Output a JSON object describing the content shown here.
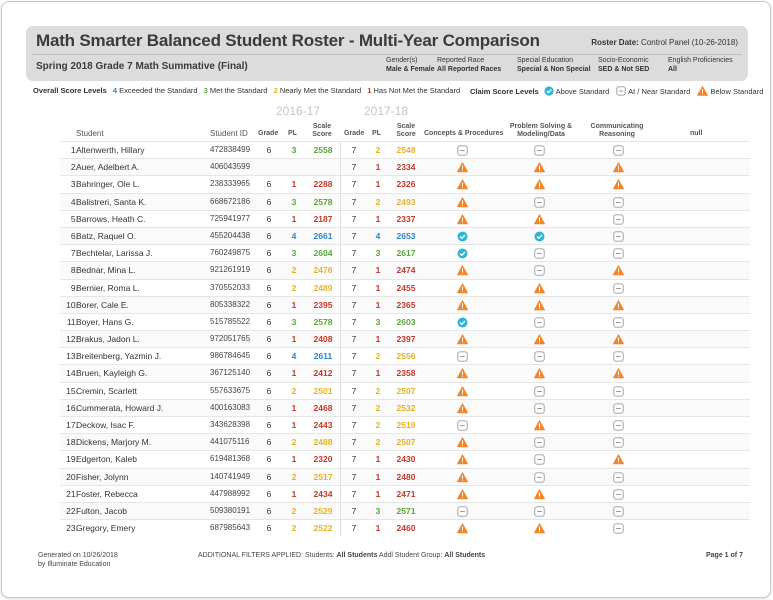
{
  "header": {
    "title": "Math Smarter Balanced Student Roster - Multi-Year Comparison",
    "roster_date_label": "Roster Date:",
    "roster_date_value": "Control Panel (10-26-2018)",
    "subtitle": "Spring 2018 Grade 7 Math Summative (Final)",
    "filters": [
      {
        "label": "Gender(s)",
        "value": "Male & Female"
      },
      {
        "label": "Reported Race",
        "value": "All Reported Races"
      },
      {
        "label": "Special Education",
        "value": "Special & Non Special"
      },
      {
        "label": "Socio-Economic",
        "value": "SED & Not SED"
      },
      {
        "label": "English Proficiencies",
        "value": "All"
      }
    ]
  },
  "legend": {
    "overall_label": "Overall Score Levels",
    "levels": [
      {
        "num": "4",
        "text": "Exceeded the Standard"
      },
      {
        "num": "3",
        "text": "Met the Standard"
      },
      {
        "num": "2",
        "text": "Nearly Met the Standard"
      },
      {
        "num": "1",
        "text": "Has Not Met the Standard"
      }
    ],
    "claim_label": "Claim Score Levels",
    "claim_levels": [
      "Above Standard",
      "At / Near Standard",
      "Below Standard"
    ]
  },
  "years": [
    "2016-17",
    "2017-18"
  ],
  "columns": {
    "student": "Student",
    "student_id": "Student ID",
    "grade": "Grade",
    "pl": "PL",
    "scale_score": "Scale Score",
    "concepts": "Concepts & Procedures",
    "problem": "Problem Solving & Modeling/Data",
    "communicating": "Communicating Reasoning",
    "null_col": "null"
  },
  "colors": {
    "level4": "#2f83c5",
    "level3": "#5aa637",
    "level2": "#e6b325",
    "level1": "#c0392b",
    "above": "#2eb5d4",
    "near": "#9a9a9a",
    "below": "#f0862a"
  },
  "students": [
    {
      "n": "1.",
      "name": "Altenwerth, Hillary",
      "id": "472838499",
      "g1": "6",
      "p1": "3",
      "s1": "2558",
      "g2": "7",
      "p2": "2",
      "s2": "2548",
      "c": [
        "near",
        "near",
        "near"
      ]
    },
    {
      "n": "2.",
      "name": "Auer, Adelbert A.",
      "id": "406043599",
      "g1": "",
      "p1": "",
      "s1": "",
      "g2": "7",
      "p2": "1",
      "s2": "2334",
      "c": [
        "below",
        "below",
        "below"
      ]
    },
    {
      "n": "3.",
      "name": "Bahringer, Ole L.",
      "id": "238333965",
      "g1": "6",
      "p1": "1",
      "s1": "2288",
      "g2": "7",
      "p2": "1",
      "s2": "2326",
      "c": [
        "below",
        "below",
        "below"
      ]
    },
    {
      "n": "4.",
      "name": "Balistreri, Santa K.",
      "id": "668672186",
      "g1": "6",
      "p1": "3",
      "s1": "2578",
      "g2": "7",
      "p2": "2",
      "s2": "2493",
      "c": [
        "below",
        "near",
        "near"
      ]
    },
    {
      "n": "5.",
      "name": "Barrows, Heath C.",
      "id": "725941977",
      "g1": "6",
      "p1": "1",
      "s1": "2187",
      "g2": "7",
      "p2": "1",
      "s2": "2337",
      "c": [
        "below",
        "below",
        "near"
      ]
    },
    {
      "n": "6.",
      "name": "Batz, Raquel O.",
      "id": "455204438",
      "g1": "6",
      "p1": "4",
      "s1": "2661",
      "g2": "7",
      "p2": "4",
      "s2": "2653",
      "c": [
        "above",
        "above",
        "near"
      ]
    },
    {
      "n": "7.",
      "name": "Bechtelar, Larissa J.",
      "id": "760249875",
      "g1": "6",
      "p1": "3",
      "s1": "2604",
      "g2": "7",
      "p2": "3",
      "s2": "2617",
      "c": [
        "above",
        "near",
        "near"
      ]
    },
    {
      "n": "8.",
      "name": "Bednar, Mina L.",
      "id": "921261919",
      "g1": "6",
      "p1": "2",
      "s1": "2476",
      "g2": "7",
      "p2": "1",
      "s2": "2474",
      "c": [
        "below",
        "near",
        "below"
      ]
    },
    {
      "n": "9.",
      "name": "Bernier, Roma L.",
      "id": "370552033",
      "g1": "6",
      "p1": "2",
      "s1": "2489",
      "g2": "7",
      "p2": "1",
      "s2": "2455",
      "c": [
        "below",
        "below",
        "near"
      ]
    },
    {
      "n": "10.",
      "name": "Borer, Cale E.",
      "id": "805338322",
      "g1": "6",
      "p1": "1",
      "s1": "2395",
      "g2": "7",
      "p2": "1",
      "s2": "2365",
      "c": [
        "below",
        "below",
        "below"
      ]
    },
    {
      "n": "11.",
      "name": "Boyer, Hans G.",
      "id": "515785522",
      "g1": "6",
      "p1": "3",
      "s1": "2578",
      "g2": "7",
      "p2": "3",
      "s2": "2603",
      "c": [
        "above",
        "near",
        "near"
      ]
    },
    {
      "n": "12.",
      "name": "Brakus, Jadon L.",
      "id": "972051765",
      "g1": "6",
      "p1": "1",
      "s1": "2408",
      "g2": "7",
      "p2": "1",
      "s2": "2397",
      "c": [
        "below",
        "below",
        "below"
      ]
    },
    {
      "n": "13.",
      "name": "Breitenberg, Yazmin J.",
      "id": "986784645",
      "g1": "6",
      "p1": "4",
      "s1": "2611",
      "g2": "7",
      "p2": "2",
      "s2": "2556",
      "c": [
        "near",
        "near",
        "near"
      ]
    },
    {
      "n": "14.",
      "name": "Bruen, Kayleigh G.",
      "id": "367125140",
      "g1": "6",
      "p1": "1",
      "s1": "2412",
      "g2": "7",
      "p2": "1",
      "s2": "2358",
      "c": [
        "below",
        "below",
        "below"
      ]
    },
    {
      "n": "15.",
      "name": "Cremin, Scarlett",
      "id": "557633675",
      "g1": "6",
      "p1": "2",
      "s1": "2501",
      "g2": "7",
      "p2": "2",
      "s2": "2507",
      "c": [
        "below",
        "near",
        "near"
      ]
    },
    {
      "n": "16.",
      "name": "Cummerata, Howard J.",
      "id": "400163083",
      "g1": "6",
      "p1": "1",
      "s1": "2468",
      "g2": "7",
      "p2": "2",
      "s2": "2532",
      "c": [
        "below",
        "near",
        "near"
      ]
    },
    {
      "n": "17.",
      "name": "Deckow, Isac F.",
      "id": "343628398",
      "g1": "6",
      "p1": "1",
      "s1": "2443",
      "g2": "7",
      "p2": "2",
      "s2": "2519",
      "c": [
        "near",
        "below",
        "near"
      ]
    },
    {
      "n": "18.",
      "name": "Dickens, Marjory M.",
      "id": "441075116",
      "g1": "6",
      "p1": "2",
      "s1": "2488",
      "g2": "7",
      "p2": "2",
      "s2": "2507",
      "c": [
        "below",
        "near",
        "near"
      ]
    },
    {
      "n": "19.",
      "name": "Edgerton, Kaleb",
      "id": "619481368",
      "g1": "6",
      "p1": "1",
      "s1": "2320",
      "g2": "7",
      "p2": "1",
      "s2": "2430",
      "c": [
        "below",
        "near",
        "below"
      ]
    },
    {
      "n": "20.",
      "name": "Fisher, Jolynn",
      "id": "140741949",
      "g1": "6",
      "p1": "2",
      "s1": "2517",
      "g2": "7",
      "p2": "1",
      "s2": "2480",
      "c": [
        "below",
        "near",
        "near"
      ]
    },
    {
      "n": "21.",
      "name": "Foster, Rebecca",
      "id": "447988992",
      "g1": "6",
      "p1": "1",
      "s1": "2434",
      "g2": "7",
      "p2": "1",
      "s2": "2471",
      "c": [
        "below",
        "below",
        "near"
      ]
    },
    {
      "n": "22.",
      "name": "Fulton, Jacob",
      "id": "509380191",
      "g1": "6",
      "p1": "2",
      "s1": "2529",
      "g2": "7",
      "p2": "3",
      "s2": "2571",
      "c": [
        "near",
        "near",
        "near"
      ]
    },
    {
      "n": "23.",
      "name": "Gregory, Emery",
      "id": "687985643",
      "g1": "6",
      "p1": "2",
      "s1": "2522",
      "g2": "7",
      "p2": "1",
      "s2": "2460",
      "c": [
        "below",
        "below",
        "near"
      ]
    }
  ],
  "footer": {
    "generated": "Generated on 10/26/2018",
    "by": "by Illuminate Education",
    "filters_label": "ADDITIONAL FILTERS APPLIED:",
    "students_label": "Students:",
    "students_value": "All Students",
    "group_label": "Addl Student Group:",
    "group_value": "All Students",
    "page": "Page 1 of 7"
  }
}
